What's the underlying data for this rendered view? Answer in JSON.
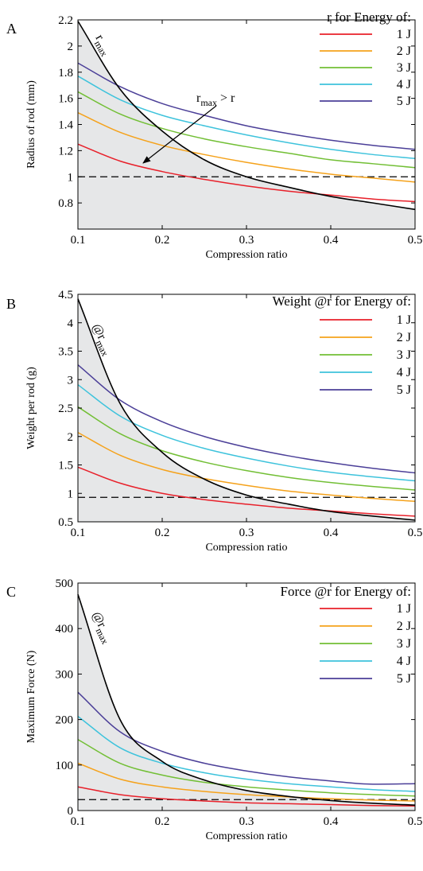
{
  "chart_data": [
    {
      "type": "line",
      "panel_label": "A",
      "xlabel": "Compression ratio",
      "ylabel": "Radius of rod (mm)",
      "xlim": [
        0.1,
        0.5
      ],
      "ylim": [
        0.6,
        2.2
      ],
      "xticks": [
        0.1,
        0.2,
        0.3,
        0.4,
        0.5
      ],
      "xtick_labels": [
        "0.1",
        "0.2",
        "0.3",
        "0.4",
        "0.5"
      ],
      "yticks": [
        0.8,
        1.0,
        1.2,
        1.4,
        1.6,
        1.8,
        2.0,
        2.2
      ],
      "ytick_labels": [
        "0.8",
        "1",
        "1.2",
        "1.4",
        "1.6",
        "1.8",
        "2",
        "2.2"
      ],
      "legend_title": "r for Energy of:",
      "legend_position": "top-right",
      "x": [
        0.1,
        0.15,
        0.2,
        0.25,
        0.3,
        0.35,
        0.4,
        0.45,
        0.5
      ],
      "series": [
        {
          "name": "1 J",
          "color": "#e8202a",
          "values": [
            1.25,
            1.12,
            1.04,
            0.98,
            0.93,
            0.89,
            0.86,
            0.83,
            0.81
          ]
        },
        {
          "name": "2 J",
          "color": "#f5a21b",
          "values": [
            1.49,
            1.34,
            1.24,
            1.17,
            1.11,
            1.06,
            1.02,
            0.99,
            0.96
          ]
        },
        {
          "name": "3 J",
          "color": "#72bf35",
          "values": [
            1.65,
            1.48,
            1.37,
            1.29,
            1.23,
            1.18,
            1.13,
            1.1,
            1.07
          ]
        },
        {
          "name": "4 J",
          "color": "#3ec3dc",
          "values": [
            1.77,
            1.59,
            1.47,
            1.39,
            1.32,
            1.26,
            1.21,
            1.17,
            1.14
          ]
        },
        {
          "name": "5 J",
          "color": "#4b3f98",
          "values": [
            1.87,
            1.69,
            1.56,
            1.47,
            1.39,
            1.33,
            1.28,
            1.24,
            1.21
          ]
        }
      ],
      "rmax": {
        "values": [
          2.19,
          1.67,
          1.35,
          1.13,
          1.0,
          0.92,
          0.85,
          0.8,
          0.75
        ],
        "label_main": "r",
        "label_sub": "max"
      },
      "reference_line": 1.0,
      "annotation": {
        "main": "r",
        "sub": "max",
        "rest": " > r"
      }
    },
    {
      "type": "line",
      "panel_label": "B",
      "xlabel": "Compression ratio",
      "ylabel": "Weight per rod (g)",
      "xlim": [
        0.1,
        0.5
      ],
      "ylim": [
        0.5,
        4.5
      ],
      "xticks": [
        0.1,
        0.2,
        0.3,
        0.4,
        0.5
      ],
      "xtick_labels": [
        "0.1",
        "0.2",
        "0.3",
        "0.4",
        "0.5"
      ],
      "yticks": [
        0.5,
        1.0,
        1.5,
        2.0,
        2.5,
        3.0,
        3.5,
        4.0,
        4.5
      ],
      "ytick_labels": [
        "0.5",
        "1",
        "1.5",
        "2",
        "2.5",
        "3",
        "3.5",
        "4",
        "4.5"
      ],
      "legend_title": "Weight @r for Energy of:",
      "legend_position": "top-right",
      "x": [
        0.1,
        0.15,
        0.2,
        0.25,
        0.3,
        0.35,
        0.4,
        0.45,
        0.5
      ],
      "series": [
        {
          "name": "1 J",
          "color": "#e8202a",
          "values": [
            1.46,
            1.18,
            1.0,
            0.89,
            0.81,
            0.74,
            0.69,
            0.64,
            0.6
          ]
        },
        {
          "name": "2 J",
          "color": "#f5a21b",
          "values": [
            2.07,
            1.67,
            1.42,
            1.26,
            1.14,
            1.04,
            0.97,
            0.91,
            0.86
          ]
        },
        {
          "name": "3 J",
          "color": "#72bf35",
          "values": [
            2.52,
            2.05,
            1.75,
            1.55,
            1.4,
            1.28,
            1.19,
            1.12,
            1.06
          ]
        },
        {
          "name": "4 J",
          "color": "#3ec3dc",
          "values": [
            2.91,
            2.36,
            2.02,
            1.79,
            1.62,
            1.48,
            1.37,
            1.29,
            1.22
          ]
        },
        {
          "name": "5 J",
          "color": "#4b3f98",
          "values": [
            3.26,
            2.64,
            2.26,
            2.0,
            1.81,
            1.66,
            1.54,
            1.44,
            1.36
          ]
        }
      ],
      "rmax": {
        "values": [
          4.42,
          2.58,
          1.72,
          1.25,
          0.97,
          0.81,
          0.68,
          0.6,
          0.53
        ],
        "label_main": "@r",
        "label_sub": "max"
      },
      "reference_line": 0.93
    },
    {
      "type": "line",
      "panel_label": "C",
      "xlabel": "Compression ratio",
      "ylabel": "Maximum Force (N)",
      "xlim": [
        0.1,
        0.5
      ],
      "ylim": [
        0,
        500
      ],
      "xticks": [
        0.1,
        0.2,
        0.3,
        0.4,
        0.5
      ],
      "xtick_labels": [
        "0.1",
        "0.2",
        "0.3",
        "0.4",
        "0.5"
      ],
      "yticks": [
        0,
        100,
        200,
        300,
        400,
        500
      ],
      "ytick_labels": [
        "0",
        "100",
        "200",
        "300",
        "400",
        "500"
      ],
      "legend_title": "Force @r for Energy of:",
      "legend_position": "top-right",
      "x": [
        0.1,
        0.15,
        0.2,
        0.25,
        0.3,
        0.35,
        0.4,
        0.45,
        0.5
      ],
      "series": [
        {
          "name": "1 J",
          "color": "#e8202a",
          "values": [
            52,
            35,
            26,
            21,
            17,
            15,
            13,
            11,
            10
          ]
        },
        {
          "name": "2 J",
          "color": "#f5a21b",
          "values": [
            104,
            69,
            52,
            42,
            35,
            30,
            26,
            23,
            21
          ]
        },
        {
          "name": "3 J",
          "color": "#72bf35",
          "values": [
            156,
            104,
            78,
            62,
            52,
            45,
            39,
            35,
            32
          ]
        },
        {
          "name": "4 J",
          "color": "#3ec3dc",
          "values": [
            207,
            138,
            104,
            83,
            69,
            59,
            52,
            46,
            42
          ]
        },
        {
          "name": "5 J",
          "color": "#4b3f98",
          "values": [
            260,
            173,
            130,
            104,
            87,
            74,
            65,
            58,
            59
          ]
        }
      ],
      "rmax": {
        "values": [
          475,
          200,
          108,
          67,
          44,
          31,
          22,
          16,
          12
        ],
        "label_main": "@r",
        "label_sub": "max"
      },
      "reference_line": 24
    }
  ]
}
